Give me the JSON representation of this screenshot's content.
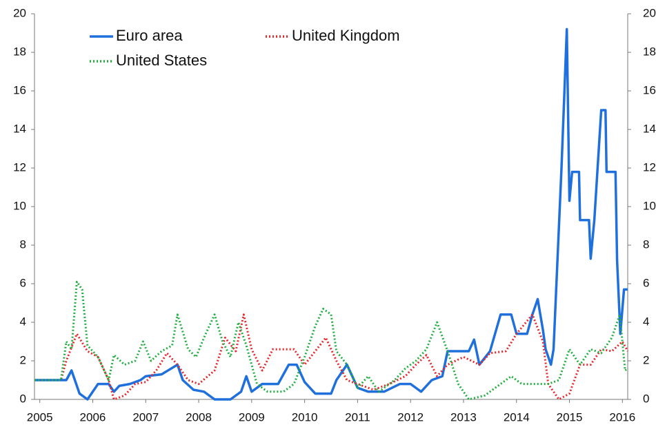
{
  "chart_data": {
    "type": "line",
    "xlim": [
      2004.9,
      2016.1
    ],
    "xticks": [
      2005,
      2006,
      2007,
      2008,
      2009,
      2010,
      2011,
      2012,
      2013,
      2014,
      2015,
      2016
    ],
    "ylim": [
      0,
      20
    ],
    "yticks": [
      0,
      2,
      4,
      6,
      8,
      10,
      12,
      14,
      16,
      18,
      20
    ],
    "y2lim": [
      0,
      20
    ],
    "y2ticks": [
      0,
      2,
      4,
      6,
      8,
      10,
      12,
      14,
      16,
      18,
      20
    ],
    "series": [
      {
        "name": "Euro area",
        "color": "#1f6fdc",
        "dash": "solid",
        "x": [
          2004.9,
          2005.5,
          2005.6,
          2005.75,
          2005.9,
          2006.1,
          2006.3,
          2006.4,
          2006.5,
          2006.7,
          2006.9,
          2007.0,
          2007.3,
          2007.6,
          2007.7,
          2007.9,
          2008.1,
          2008.3,
          2008.6,
          2008.8,
          2008.9,
          2009.0,
          2009.2,
          2009.5,
          2009.7,
          2009.85,
          2010.0,
          2010.2,
          2010.5,
          2010.6,
          2010.8,
          2010.9,
          2011.0,
          2011.2,
          2011.5,
          2011.8,
          2012.0,
          2012.2,
          2012.4,
          2012.6,
          2012.7,
          2013.1,
          2013.2,
          2013.3,
          2013.5,
          2013.7,
          2013.9,
          2014.0,
          2014.2,
          2014.3,
          2014.4,
          2014.5,
          2014.55,
          2014.65,
          2014.7,
          2014.85,
          2014.95,
          2015.0,
          2015.05,
          2015.18,
          2015.2,
          2015.37,
          2015.4,
          2015.47,
          2015.6,
          2015.68,
          2015.7,
          2015.87,
          2015.9,
          2015.96,
          2016.03,
          2016.1
        ],
        "values": [
          1,
          1,
          1.5,
          0.3,
          0,
          0.8,
          0.8,
          0.4,
          0.7,
          0.8,
          1.0,
          1.2,
          1.3,
          1.8,
          1.0,
          0.5,
          0.4,
          0,
          0,
          0.4,
          1.2,
          0.4,
          0.8,
          0.8,
          1.8,
          1.8,
          0.9,
          0.3,
          0.3,
          1.0,
          1.8,
          1.2,
          0.6,
          0.4,
          0.4,
          0.8,
          0.8,
          0.4,
          1.0,
          1.2,
          2.5,
          2.5,
          3.1,
          1.8,
          2.5,
          4.4,
          4.4,
          3.4,
          3.4,
          4.4,
          5.2,
          3.6,
          2.6,
          1.8,
          2.6,
          12,
          19.2,
          10.3,
          11.8,
          11.8,
          9.3,
          9.3,
          7.3,
          9.3,
          15.0,
          15.0,
          11.8,
          11.8,
          7.2,
          3.4,
          5.7,
          5.7
        ]
      },
      {
        "name": "United Kingdom",
        "color": "#e8262a",
        "dash": "dotted",
        "x": [
          2004.9,
          2005.4,
          2005.5,
          2005.7,
          2005.9,
          2006.1,
          2006.3,
          2006.4,
          2006.6,
          2006.8,
          2007.0,
          2007.2,
          2007.4,
          2007.6,
          2007.8,
          2008.0,
          2008.3,
          2008.5,
          2008.7,
          2008.85,
          2009.0,
          2009.2,
          2009.4,
          2009.8,
          2010.0,
          2010.2,
          2010.4,
          2010.6,
          2010.8,
          2011.0,
          2011.3,
          2011.6,
          2011.9,
          2012.1,
          2012.3,
          2012.5,
          2012.7,
          2013.0,
          2013.3,
          2013.5,
          2013.8,
          2014.0,
          2014.3,
          2014.5,
          2014.6,
          2014.8,
          2015.0,
          2015.2,
          2015.4,
          2015.6,
          2015.8,
          2016.0,
          2016.1
        ],
        "values": [
          1,
          1,
          2,
          3.4,
          2.5,
          2.2,
          1,
          0,
          0.2,
          0.8,
          0.9,
          1.5,
          2.4,
          1.8,
          1.0,
          0.8,
          1.5,
          3.2,
          2.5,
          4.4,
          2.6,
          1.5,
          2.6,
          2.6,
          1.8,
          2.5,
          3.2,
          2.0,
          1.0,
          0.8,
          0.5,
          0.8,
          1.2,
          1.8,
          2.3,
          1.2,
          1.8,
          2.2,
          1.8,
          2.4,
          2.5,
          3.4,
          4.4,
          3.0,
          0.8,
          0,
          0.3,
          1.8,
          1.8,
          2.6,
          2.5,
          3.0,
          2.5
        ]
      },
      {
        "name": "United States",
        "color": "#1fae3f",
        "dash": "dotted",
        "x": [
          2004.9,
          2005.4,
          2005.5,
          2005.6,
          2005.7,
          2005.8,
          2005.9,
          2006.1,
          2006.3,
          2006.4,
          2006.6,
          2006.8,
          2006.95,
          2007.1,
          2007.3,
          2007.5,
          2007.6,
          2007.8,
          2007.95,
          2008.1,
          2008.3,
          2008.45,
          2008.6,
          2008.75,
          2008.9,
          2009.1,
          2009.3,
          2009.6,
          2009.8,
          2010.0,
          2010.2,
          2010.35,
          2010.5,
          2010.6,
          2010.8,
          2011.0,
          2011.2,
          2011.4,
          2011.7,
          2011.9,
          2012.1,
          2012.3,
          2012.5,
          2012.7,
          2012.9,
          2013.1,
          2013.4,
          2013.7,
          2013.9,
          2014.1,
          2014.6,
          2014.8,
          2015.0,
          2015.2,
          2015.4,
          2015.6,
          2015.8,
          2015.95,
          2016.05,
          2016.1
        ],
        "values": [
          1,
          1,
          3,
          2.6,
          6.1,
          5.7,
          2.8,
          2.2,
          1.0,
          2.3,
          1.8,
          2.0,
          3.0,
          2.0,
          2.5,
          2.8,
          4.4,
          2.6,
          2.2,
          3.2,
          4.4,
          3.0,
          2.2,
          4.0,
          2.8,
          0.8,
          0.4,
          0.4,
          0.8,
          2.2,
          3.8,
          4.7,
          4.4,
          2.5,
          1.8,
          0.6,
          1.2,
          0.4,
          1.0,
          1.6,
          2.0,
          2.6,
          4.0,
          2.5,
          0.8,
          0,
          0.2,
          0.8,
          1.2,
          0.8,
          0.8,
          1.0,
          2.6,
          1.8,
          2.6,
          2.4,
          3.2,
          4.4,
          1.5,
          1.6
        ]
      }
    ]
  }
}
